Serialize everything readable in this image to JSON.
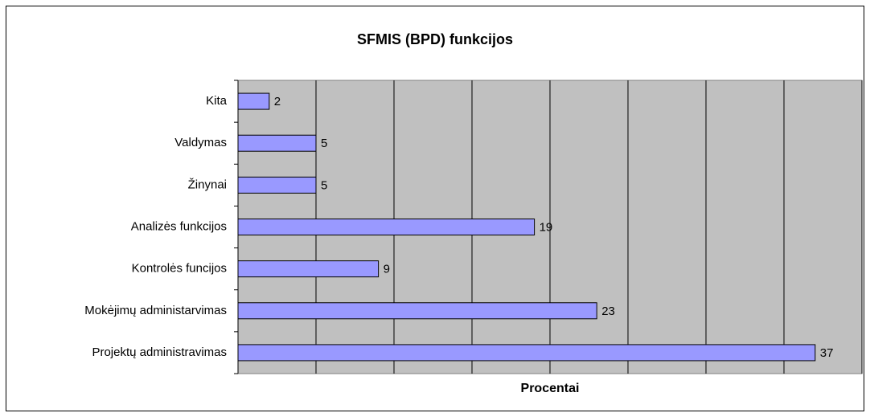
{
  "chart_data": {
    "type": "hbar",
    "title": "SFMIS (BPD) funkcijos",
    "x_label": "Procentai",
    "categories": [
      "Kita",
      "Valdymas",
      "Žinynai",
      "Analizės funkcijos",
      "Kontrolės funcijos",
      "Mokėjimų administarvimas",
      "Projektų administravimas"
    ],
    "values": [
      2,
      5,
      5,
      19,
      9,
      23,
      37
    ],
    "color": "#9999ff",
    "plot_background": "#c0c0c0",
    "xlim": [
      0,
      40
    ],
    "xticks": [
      0,
      5,
      10,
      15,
      20,
      25,
      30,
      35,
      40
    ],
    "grid": true
  }
}
